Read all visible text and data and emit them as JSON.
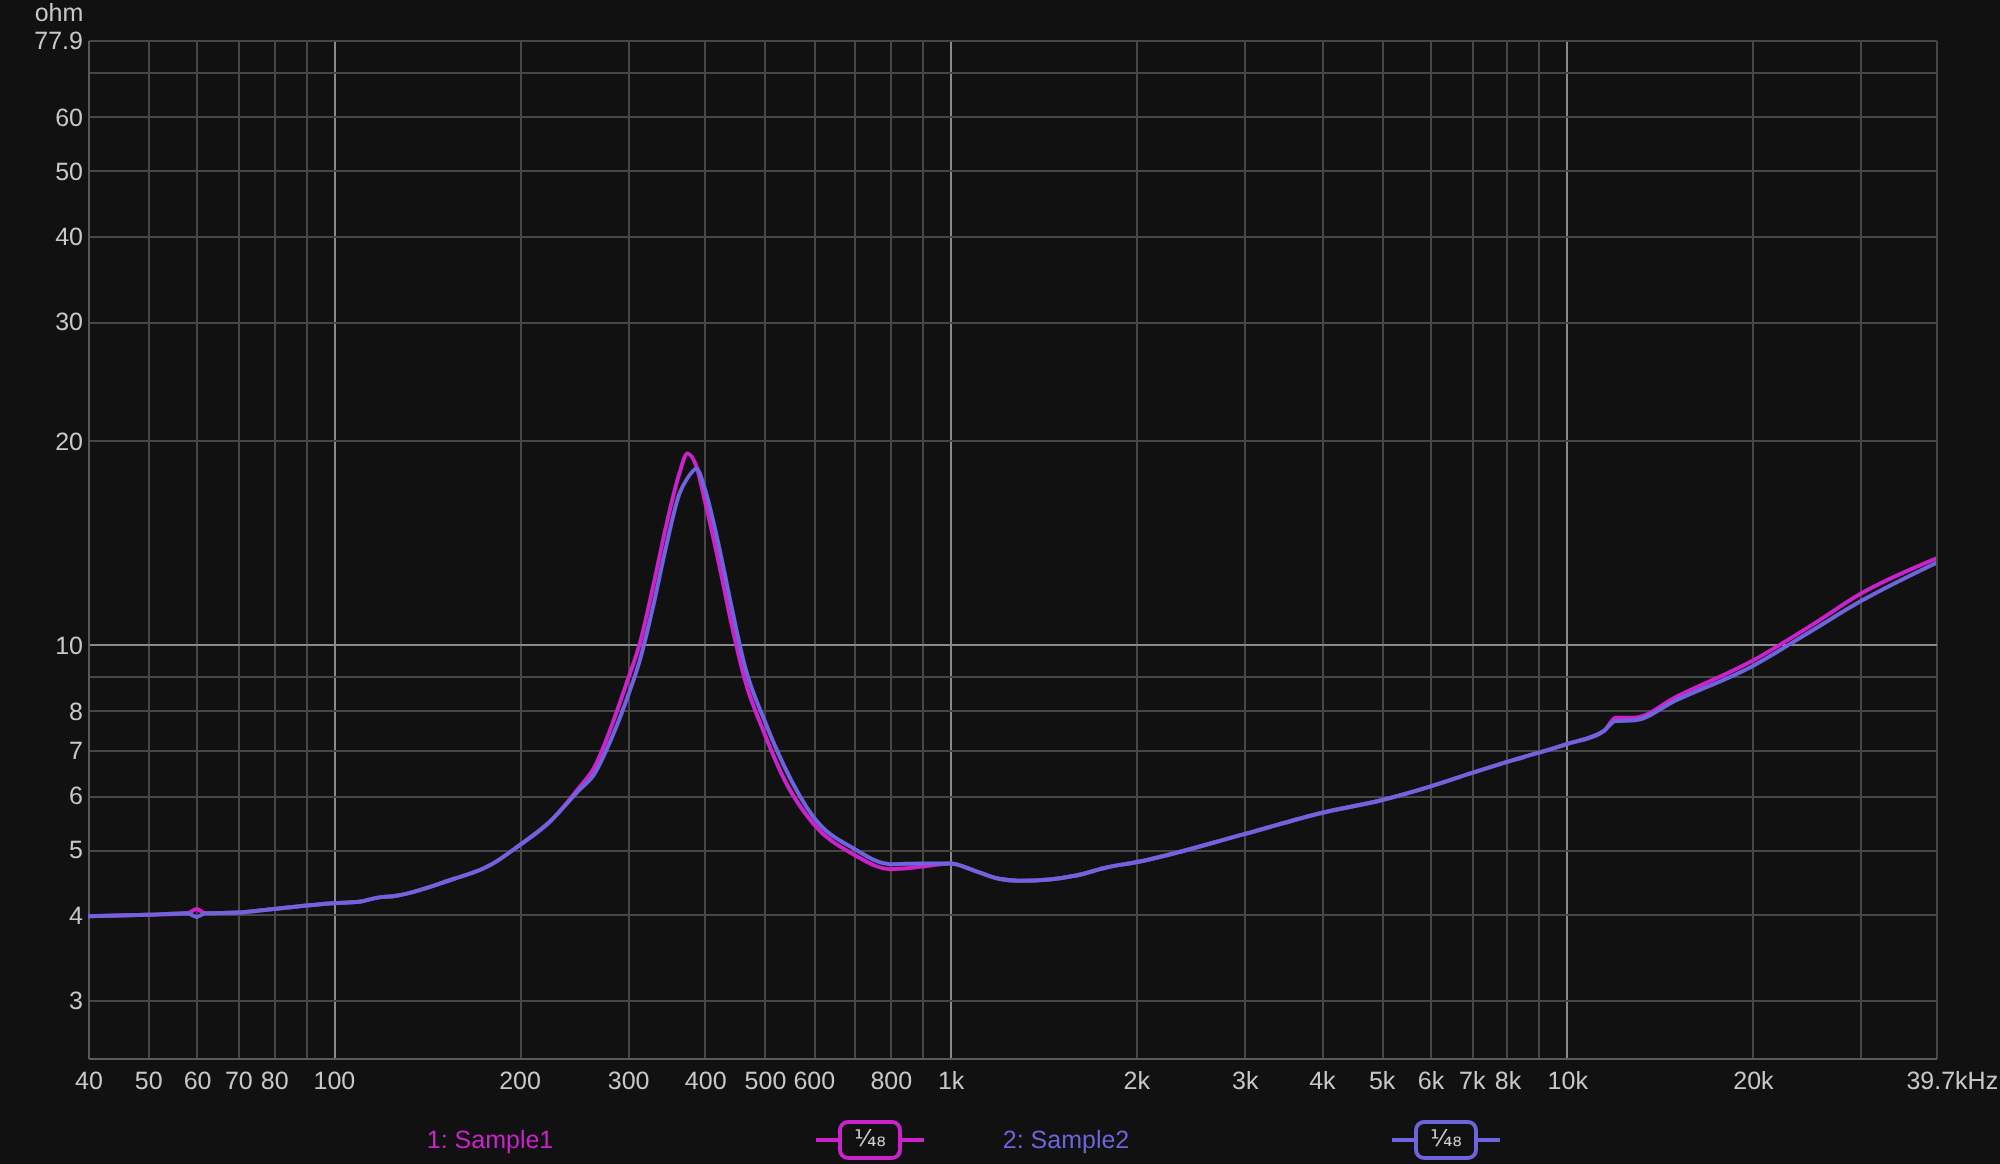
{
  "chart_data": {
    "type": "line",
    "xlabel": "Hz",
    "ylabel": "ohm",
    "x": [
      40,
      50,
      58,
      60,
      62,
      70,
      80,
      100,
      110,
      118,
      125,
      157,
      175,
      180,
      200,
      225,
      250,
      265,
      277,
      300,
      314,
      330,
      346,
      364,
      375,
      388,
      400,
      421,
      442,
      465,
      500,
      539,
      600,
      700,
      800,
      900,
      1000,
      1100,
      1200,
      1300,
      1450,
      1600,
      1800,
      2000,
      3000,
      4000,
      5000,
      6000,
      7000,
      8000,
      10000,
      11500,
      12000,
      12900,
      15000,
      20000,
      25000,
      30000,
      39700
    ],
    "series": [
      {
        "name": "1: Sample1",
        "color": "#cc22cc",
        "values": [
          3.98,
          4.0,
          4.02,
          4.08,
          4.02,
          4.03,
          4.08,
          4.16,
          4.18,
          4.24,
          4.26,
          4.52,
          4.68,
          4.74,
          5.06,
          5.5,
          6.15,
          6.6,
          7.24,
          8.87,
          10.05,
          12.2,
          14.9,
          17.9,
          19.15,
          18.3,
          16.35,
          13.3,
          10.75,
          8.87,
          7.4,
          6.32,
          5.45,
          4.9,
          4.67,
          4.71,
          4.76,
          4.64,
          4.52,
          4.49,
          4.51,
          4.57,
          4.7,
          4.78,
          5.26,
          5.65,
          5.9,
          6.18,
          6.47,
          6.72,
          7.14,
          7.47,
          7.81,
          7.81,
          8.37,
          9.47,
          10.7,
          11.9,
          13.4
        ]
      },
      {
        "name": "2: Sample2",
        "color": "#6e64dc",
        "values": [
          3.98,
          4.0,
          4.02,
          3.97,
          4.02,
          4.03,
          4.08,
          4.16,
          4.18,
          4.24,
          4.26,
          4.52,
          4.68,
          4.74,
          5.06,
          5.5,
          6.1,
          6.45,
          6.99,
          8.38,
          9.49,
          11.4,
          13.9,
          16.7,
          17.6,
          18.18,
          17.0,
          14.1,
          11.4,
          9.28,
          7.74,
          6.61,
          5.58,
          5.0,
          4.75,
          4.76,
          4.76,
          4.64,
          4.52,
          4.49,
          4.51,
          4.57,
          4.7,
          4.78,
          5.26,
          5.65,
          5.9,
          6.18,
          6.47,
          6.72,
          7.14,
          7.47,
          7.72,
          7.74,
          8.27,
          9.3,
          10.5,
          11.6,
          13.2
        ]
      }
    ],
    "xlim": [
      40,
      39700
    ],
    "ylim": [
      2.46,
      77.9
    ],
    "xticks": [
      40,
      50,
      60,
      70,
      80,
      {
        "value": 90,
        "label": null
      },
      100,
      200,
      300,
      400,
      500,
      600,
      {
        "value": 700,
        "label": null
      },
      800,
      {
        "value": 900,
        "label": null
      },
      {
        "value": 1000,
        "label": "1k"
      },
      {
        "value": 2000,
        "label": "2k"
      },
      {
        "value": 3000,
        "label": "3k"
      },
      {
        "value": 4000,
        "label": "4k"
      },
      {
        "value": 5000,
        "label": "5k"
      },
      {
        "value": 6000,
        "label": "6k"
      },
      {
        "value": 7000,
        "label": "7k"
      },
      {
        "value": 8000,
        "label": "8k"
      },
      {
        "value": 9000,
        "label": null
      },
      {
        "value": 10000,
        "label": "10k"
      },
      {
        "value": 20000,
        "label": "20k"
      },
      {
        "value": 30000,
        "label": null
      },
      {
        "value": 39700,
        "label": "39.7k"
      }
    ],
    "yticks": [
      3,
      4,
      5,
      6,
      7,
      8,
      {
        "value": 9,
        "label": null
      },
      10,
      20,
      30,
      40,
      50,
      60,
      {
        "value": 70,
        "label": null
      },
      77.9
    ],
    "log": "xy",
    "grid": true,
    "legend": "bottom",
    "annotations": [
      "¹⁄₄₈",
      "¹⁄₄₈"
    ]
  }
}
